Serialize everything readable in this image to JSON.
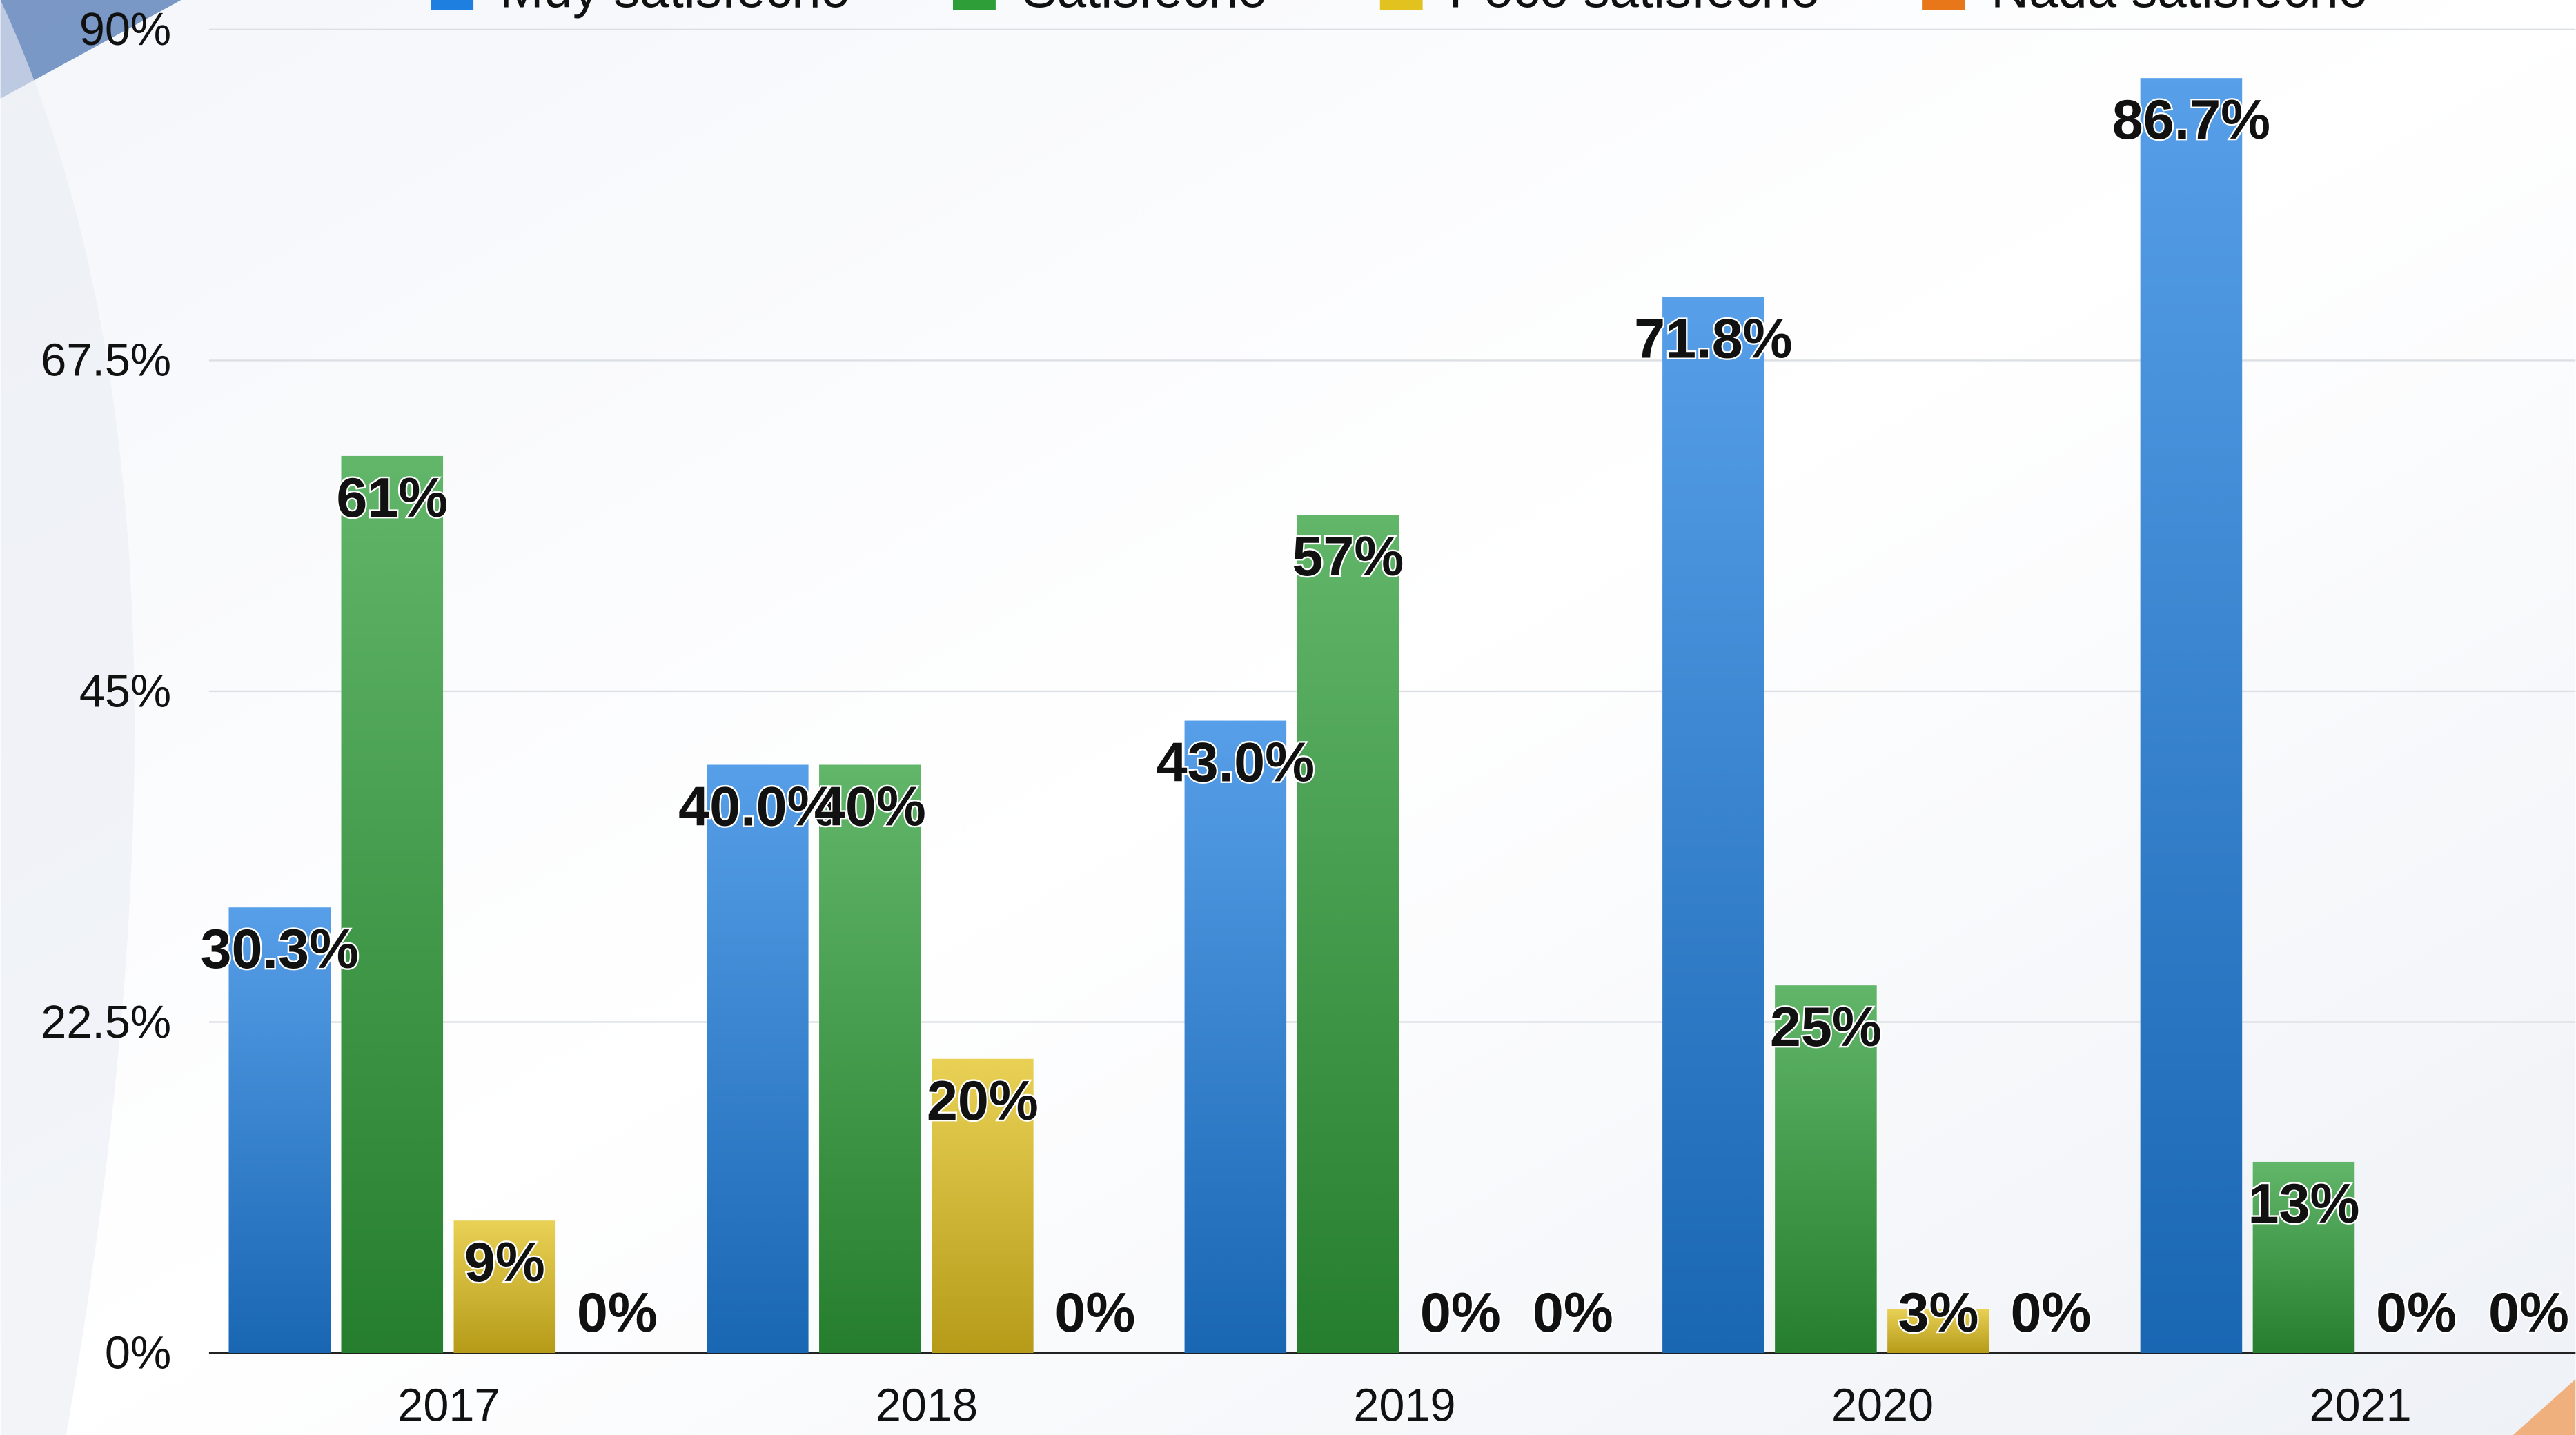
{
  "chart_data": {
    "type": "bar",
    "categories": [
      "2017",
      "2018",
      "2019",
      "2020",
      "2021"
    ],
    "series": [
      {
        "name": "Muy satisfecho",
        "color": "#1f7fe0",
        "values": [
          30.3,
          40.0,
          43.0,
          71.8,
          86.7
        ],
        "value_labels": [
          "30.3%",
          "40.0%",
          "43.0%",
          "71.8%",
          "86.7%"
        ]
      },
      {
        "name": "Satisfecho",
        "color": "#2e9e38",
        "values": [
          61,
          40,
          57,
          25,
          13
        ],
        "value_labels": [
          "61%",
          "40%",
          "57%",
          "25%",
          "13%"
        ]
      },
      {
        "name": "Poco satisfecho",
        "color": "#e2c21e",
        "values": [
          9,
          20,
          0,
          3,
          0
        ],
        "value_labels": [
          "9%",
          "20%",
          "0%",
          "3%",
          "0%"
        ]
      },
      {
        "name": "Nada satisfecho",
        "color": "#e8771a",
        "values": [
          0,
          0,
          0,
          0,
          0
        ],
        "value_labels": [
          "0%",
          "0%",
          "0%",
          "0%",
          "0%"
        ]
      }
    ],
    "ylim": [
      0,
      90
    ],
    "yticks": [
      {
        "value": 0,
        "label": "0%"
      },
      {
        "value": 22.5,
        "label": "22.5%"
      },
      {
        "value": 45,
        "label": "45%"
      },
      {
        "value": 67.5,
        "label": "67.5%"
      },
      {
        "value": 90,
        "label": "90%"
      }
    ],
    "grid": true,
    "legend": "top"
  }
}
